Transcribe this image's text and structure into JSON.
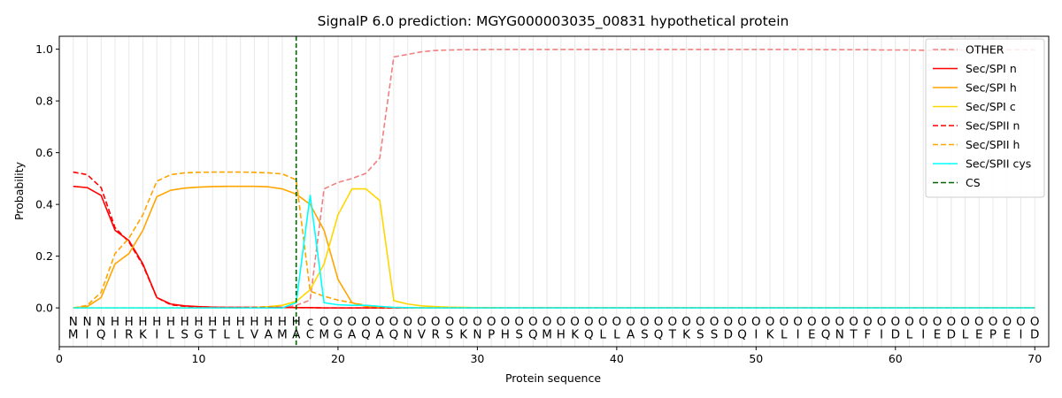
{
  "chart_data": {
    "type": "line",
    "title": "SignalP 6.0 prediction: MGYG000003035_00831 hypothetical protein",
    "xlabel": "Protein sequence",
    "ylabel": "Probability",
    "xlim": [
      0,
      71
    ],
    "ylim": [
      -0.15,
      1.05
    ],
    "x_ticks": [
      0,
      10,
      20,
      30,
      40,
      50,
      60,
      70
    ],
    "y_ticks": [
      0.0,
      0.2,
      0.4,
      0.6,
      0.8,
      1.0
    ],
    "y_tick_labels": [
      "0.0",
      "0.2",
      "0.4",
      "0.6",
      "0.8",
      "1.0"
    ],
    "grid": "vertical lines at each residue",
    "legend_placement": "top-right",
    "sequence": [
      "M",
      "I",
      "Q",
      "I",
      "R",
      "K",
      "I",
      "L",
      "S",
      "G",
      "T",
      "L",
      "L",
      "V",
      "A",
      "M",
      "A",
      "C",
      "M",
      "G",
      "A",
      "Q",
      "A",
      "Q",
      "N",
      "V",
      "R",
      "S",
      "K",
      "N",
      "P",
      "H",
      "S",
      "Q",
      "M",
      "H",
      "K",
      "Q",
      "L",
      "L",
      "A",
      "S",
      "Q",
      "T",
      "K",
      "S",
      "S",
      "D",
      "Q",
      "I",
      "K",
      "L",
      "I",
      "E",
      "Q",
      "N",
      "T",
      "F",
      "I",
      "D",
      "L",
      "I",
      "E",
      "D",
      "L",
      "E",
      "P",
      "E",
      "I",
      "D"
    ],
    "region_labels": [
      "N",
      "N",
      "N",
      "H",
      "H",
      "H",
      "H",
      "H",
      "H",
      "H",
      "H",
      "H",
      "H",
      "H",
      "H",
      "H",
      "H",
      "c",
      "O",
      "O",
      "O",
      "O",
      "O",
      "O",
      "O",
      "O",
      "O",
      "O",
      "O",
      "O",
      "O",
      "O",
      "O",
      "O",
      "O",
      "O",
      "O",
      "O",
      "O",
      "O",
      "O",
      "O",
      "O",
      "O",
      "O",
      "O",
      "O",
      "O",
      "O",
      "O",
      "O",
      "O",
      "O",
      "O",
      "O",
      "O",
      "O",
      "O",
      "O",
      "O",
      "O",
      "O",
      "O",
      "O",
      "O",
      "O",
      "O",
      "O",
      "O",
      "O"
    ],
    "region_colors": {
      "N": "#ff0000",
      "H": "#ffa500",
      "c": "#00ffff",
      "O": "#808080"
    },
    "cleavage_site": 17,
    "cs_label": "CS",
    "cs_color": "#006400",
    "series": [
      {
        "name": "OTHER",
        "color": "#f08080",
        "dash": "dashed",
        "values": [
          0.0,
          0.0,
          0.0,
          0.0,
          0.0,
          0.0,
          0.0,
          0.0,
          0.0,
          0.0,
          0.0,
          0.0,
          0.0,
          0.0,
          0.0,
          0.0,
          0.01,
          0.03,
          0.46,
          0.485,
          0.5,
          0.52,
          0.58,
          0.97,
          0.98,
          0.99,
          0.995,
          0.997,
          0.998,
          0.998,
          0.999,
          0.999,
          0.999,
          0.999,
          0.999,
          0.999,
          0.999,
          0.999,
          0.999,
          0.999,
          0.999,
          0.999,
          0.999,
          0.999,
          0.999,
          0.999,
          0.999,
          0.999,
          0.999,
          0.999,
          0.999,
          0.999,
          0.999,
          0.999,
          0.998,
          0.998,
          0.998,
          0.998,
          0.997,
          0.997,
          0.997,
          0.996,
          0.996,
          0.996,
          0.997,
          0.997,
          0.997,
          0.998,
          0.998,
          0.998
        ]
      },
      {
        "name": "Sec/SPI n",
        "color": "#ff0000",
        "dash": "solid",
        "values": [
          0.47,
          0.465,
          0.435,
          0.3,
          0.26,
          0.17,
          0.04,
          0.015,
          0.008,
          0.005,
          0.003,
          0.002,
          0.002,
          0.002,
          0.002,
          0.002,
          0.001,
          0.001,
          0.0,
          0.0,
          0.0,
          0.0,
          0.0,
          0.0,
          0.0,
          0.0,
          0.0,
          0.0,
          0.0,
          0.0,
          0.0,
          0.0,
          0.0,
          0.0,
          0.0,
          0.0,
          0.0,
          0.0,
          0.0,
          0.0,
          0.0,
          0.0,
          0.0,
          0.0,
          0.0,
          0.0,
          0.0,
          0.0,
          0.0,
          0.0,
          0.0,
          0.0,
          0.0,
          0.0,
          0.0,
          0.0,
          0.0,
          0.0,
          0.0,
          0.0,
          0.0,
          0.0,
          0.0,
          0.0,
          0.0,
          0.0,
          0.0,
          0.0,
          0.0,
          0.0
        ]
      },
      {
        "name": "Sec/SPI h",
        "color": "#ffa500",
        "dash": "solid",
        "values": [
          0.0,
          0.005,
          0.04,
          0.17,
          0.21,
          0.3,
          0.43,
          0.455,
          0.463,
          0.467,
          0.469,
          0.47,
          0.47,
          0.47,
          0.468,
          0.46,
          0.44,
          0.4,
          0.3,
          0.11,
          0.02,
          0.005,
          0.002,
          0.001,
          0.0,
          0.0,
          0.0,
          0.0,
          0.0,
          0.0,
          0.0,
          0.0,
          0.0,
          0.0,
          0.0,
          0.0,
          0.0,
          0.0,
          0.0,
          0.0,
          0.0,
          0.0,
          0.0,
          0.0,
          0.0,
          0.0,
          0.0,
          0.0,
          0.0,
          0.0,
          0.0,
          0.0,
          0.0,
          0.0,
          0.0,
          0.0,
          0.0,
          0.0,
          0.0,
          0.0,
          0.0,
          0.0,
          0.0,
          0.0,
          0.0,
          0.0,
          0.0,
          0.0,
          0.0,
          0.0
        ]
      },
      {
        "name": "Sec/SPI c",
        "color": "#ffd700",
        "dash": "solid",
        "values": [
          0.0,
          0.0,
          0.0,
          0.0,
          0.0,
          0.0,
          0.0,
          0.0,
          0.0,
          0.0,
          0.0,
          0.0,
          0.0,
          0.002,
          0.005,
          0.01,
          0.025,
          0.07,
          0.17,
          0.36,
          0.46,
          0.46,
          0.415,
          0.028,
          0.015,
          0.008,
          0.005,
          0.003,
          0.002,
          0.001,
          0.001,
          0.0,
          0.0,
          0.0,
          0.0,
          0.0,
          0.0,
          0.0,
          0.0,
          0.0,
          0.0,
          0.0,
          0.0,
          0.0,
          0.0,
          0.0,
          0.0,
          0.0,
          0.0,
          0.0,
          0.0,
          0.0,
          0.0,
          0.0,
          0.0,
          0.0,
          0.0,
          0.0,
          0.0,
          0.0,
          0.0,
          0.0,
          0.0,
          0.0,
          0.0,
          0.0,
          0.0,
          0.0,
          0.0,
          0.0
        ]
      },
      {
        "name": "Sec/SPII n",
        "color": "#ff0000",
        "dash": "dashed",
        "values": [
          0.525,
          0.515,
          0.465,
          0.31,
          0.255,
          0.165,
          0.04,
          0.012,
          0.006,
          0.004,
          0.003,
          0.002,
          0.002,
          0.002,
          0.002,
          0.002,
          0.001,
          0.001,
          0.0,
          0.0,
          0.0,
          0.0,
          0.0,
          0.0,
          0.0,
          0.0,
          0.0,
          0.0,
          0.0,
          0.0,
          0.0,
          0.0,
          0.0,
          0.0,
          0.0,
          0.0,
          0.0,
          0.0,
          0.0,
          0.0,
          0.0,
          0.0,
          0.0,
          0.0,
          0.0,
          0.0,
          0.0,
          0.0,
          0.0,
          0.0,
          0.0,
          0.0,
          0.0,
          0.0,
          0.0,
          0.0,
          0.0,
          0.0,
          0.0,
          0.0,
          0.0,
          0.0,
          0.0,
          0.0,
          0.0,
          0.0,
          0.0,
          0.0,
          0.0,
          0.0
        ]
      },
      {
        "name": "Sec/SPII h",
        "color": "#ffa500",
        "dash": "dashed",
        "values": [
          0.0,
          0.01,
          0.06,
          0.21,
          0.27,
          0.36,
          0.49,
          0.515,
          0.522,
          0.524,
          0.525,
          0.525,
          0.525,
          0.524,
          0.522,
          0.518,
          0.495,
          0.065,
          0.045,
          0.03,
          0.02,
          0.01,
          0.005,
          0.002,
          0.001,
          0.0,
          0.0,
          0.0,
          0.0,
          0.0,
          0.0,
          0.0,
          0.0,
          0.0,
          0.0,
          0.0,
          0.0,
          0.0,
          0.0,
          0.0,
          0.0,
          0.0,
          0.0,
          0.0,
          0.0,
          0.0,
          0.0,
          0.0,
          0.0,
          0.0,
          0.0,
          0.0,
          0.0,
          0.0,
          0.0,
          0.0,
          0.0,
          0.0,
          0.0,
          0.0,
          0.0,
          0.0,
          0.0,
          0.0,
          0.0,
          0.0,
          0.0,
          0.0,
          0.0,
          0.0
        ]
      },
      {
        "name": "Sec/SPII cys",
        "color": "#00ffff",
        "dash": "solid",
        "values": [
          0.0,
          0.0,
          0.0,
          0.0,
          0.0,
          0.0,
          0.0,
          0.0,
          0.0,
          0.0,
          0.0,
          0.0,
          0.0,
          0.0,
          0.0,
          0.0,
          0.02,
          0.435,
          0.02,
          0.012,
          0.01,
          0.01,
          0.006,
          0.002,
          0.001,
          0.0,
          0.0,
          0.0,
          0.0,
          0.0,
          0.0,
          0.0,
          0.0,
          0.0,
          0.0,
          0.0,
          0.0,
          0.0,
          0.0,
          0.0,
          0.0,
          0.0,
          0.0,
          0.0,
          0.0,
          0.0,
          0.0,
          0.0,
          0.0,
          0.0,
          0.0,
          0.0,
          0.0,
          0.0,
          0.0,
          0.0,
          0.0,
          0.0,
          0.0,
          0.0,
          0.0,
          0.0,
          0.0,
          0.0,
          0.0,
          0.0,
          0.0,
          0.0,
          0.0,
          0.0
        ]
      }
    ]
  }
}
